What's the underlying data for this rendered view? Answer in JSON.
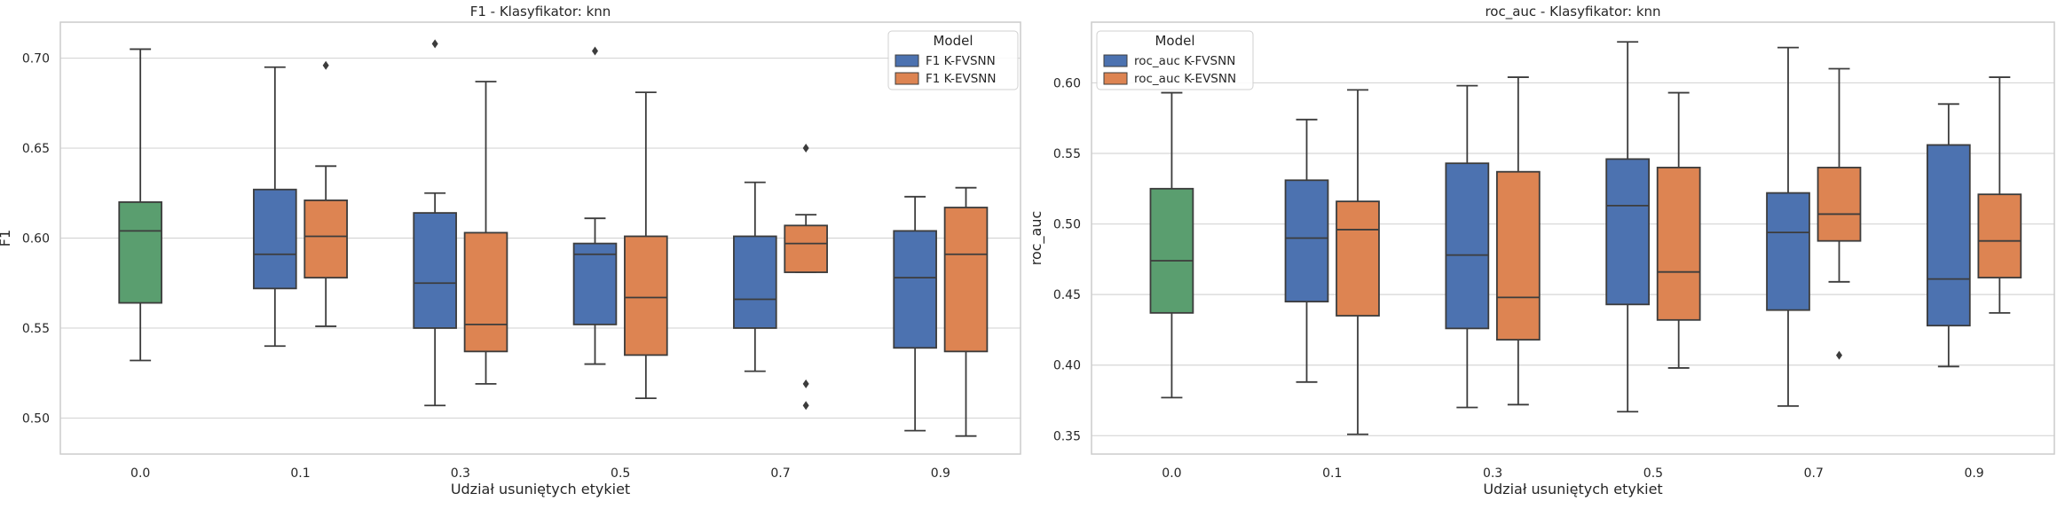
{
  "colors": {
    "baseline": "#5a9e6f",
    "fvsnn": "#4c72b0",
    "evsnn": "#dd8452",
    "grid": "#d6d6d6",
    "frame": "#cccccc",
    "line": "#3c3c3c"
  },
  "chart_data": [
    {
      "type": "box",
      "title": "F1 - Klasyfikator: knn",
      "xlabel": "Udział usuniętych etykiet",
      "ylabel": "F1",
      "categories": [
        "0.0",
        "0.1",
        "0.3",
        "0.5",
        "0.7",
        "0.9"
      ],
      "yticks": [
        "0.50",
        "0.55",
        "0.60",
        "0.65",
        "0.70"
      ],
      "ylim": [
        0.48,
        0.72
      ],
      "grid": "horizontal",
      "legend": {
        "title": "Model",
        "position": "top-right",
        "entries": [
          {
            "label": "F1 K-FVSNN",
            "series": "fvsnn"
          },
          {
            "label": "F1 K-EVSNN",
            "series": "evsnn"
          }
        ]
      },
      "boxes": [
        {
          "category": "0.0",
          "series": "baseline",
          "whisker_low": 0.532,
          "q1": 0.564,
          "median": 0.604,
          "q3": 0.62,
          "whisker_high": 0.705,
          "outliers": []
        },
        {
          "category": "0.1",
          "series": "fvsnn",
          "whisker_low": 0.54,
          "q1": 0.572,
          "median": 0.591,
          "q3": 0.627,
          "whisker_high": 0.695,
          "outliers": []
        },
        {
          "category": "0.1",
          "series": "evsnn",
          "whisker_low": 0.551,
          "q1": 0.578,
          "median": 0.601,
          "q3": 0.621,
          "whisker_high": 0.64,
          "outliers": [
            0.696
          ]
        },
        {
          "category": "0.3",
          "series": "fvsnn",
          "whisker_low": 0.507,
          "q1": 0.55,
          "median": 0.575,
          "q3": 0.614,
          "whisker_high": 0.625,
          "outliers": [
            0.708
          ]
        },
        {
          "category": "0.3",
          "series": "evsnn",
          "whisker_low": 0.519,
          "q1": 0.537,
          "median": 0.552,
          "q3": 0.603,
          "whisker_high": 0.687,
          "outliers": []
        },
        {
          "category": "0.5",
          "series": "fvsnn",
          "whisker_low": 0.53,
          "q1": 0.552,
          "median": 0.591,
          "q3": 0.597,
          "whisker_high": 0.611,
          "outliers": [
            0.704
          ]
        },
        {
          "category": "0.5",
          "series": "evsnn",
          "whisker_low": 0.511,
          "q1": 0.535,
          "median": 0.567,
          "q3": 0.601,
          "whisker_high": 0.681,
          "outliers": []
        },
        {
          "category": "0.7",
          "series": "fvsnn",
          "whisker_low": 0.526,
          "q1": 0.55,
          "median": 0.566,
          "q3": 0.601,
          "whisker_high": 0.631,
          "outliers": []
        },
        {
          "category": "0.7",
          "series": "evsnn",
          "whisker_low": 0.581,
          "q1": 0.581,
          "median": 0.597,
          "q3": 0.607,
          "whisker_high": 0.613,
          "outliers": [
            0.65,
            0.519,
            0.507
          ]
        },
        {
          "category": "0.9",
          "series": "fvsnn",
          "whisker_low": 0.493,
          "q1": 0.539,
          "median": 0.578,
          "q3": 0.604,
          "whisker_high": 0.623,
          "outliers": []
        },
        {
          "category": "0.9",
          "series": "evsnn",
          "whisker_low": 0.49,
          "q1": 0.537,
          "median": 0.591,
          "q3": 0.617,
          "whisker_high": 0.628,
          "outliers": []
        }
      ]
    },
    {
      "type": "box",
      "title": "roc_auc - Klasyfikator: knn",
      "xlabel": "Udział usuniętych etykiet",
      "ylabel": "roc_auc",
      "categories": [
        "0.0",
        "0.1",
        "0.3",
        "0.5",
        "0.7",
        "0.9"
      ],
      "yticks": [
        "0.35",
        "0.40",
        "0.45",
        "0.50",
        "0.55",
        "0.60"
      ],
      "ylim": [
        0.337,
        0.643
      ],
      "grid": "horizontal",
      "legend": {
        "title": "Model",
        "position": "top-left",
        "entries": [
          {
            "label": "roc_auc K-FVSNN",
            "series": "fvsnn"
          },
          {
            "label": "roc_auc K-EVSNN",
            "series": "evsnn"
          }
        ]
      },
      "boxes": [
        {
          "category": "0.0",
          "series": "baseline",
          "whisker_low": 0.377,
          "q1": 0.437,
          "median": 0.474,
          "q3": 0.525,
          "whisker_high": 0.593,
          "outliers": []
        },
        {
          "category": "0.1",
          "series": "fvsnn",
          "whisker_low": 0.388,
          "q1": 0.445,
          "median": 0.49,
          "q3": 0.531,
          "whisker_high": 0.574,
          "outliers": []
        },
        {
          "category": "0.1",
          "series": "evsnn",
          "whisker_low": 0.351,
          "q1": 0.435,
          "median": 0.496,
          "q3": 0.516,
          "whisker_high": 0.595,
          "outliers": []
        },
        {
          "category": "0.3",
          "series": "fvsnn",
          "whisker_low": 0.37,
          "q1": 0.426,
          "median": 0.478,
          "q3": 0.543,
          "whisker_high": 0.598,
          "outliers": []
        },
        {
          "category": "0.3",
          "series": "evsnn",
          "whisker_low": 0.372,
          "q1": 0.418,
          "median": 0.448,
          "q3": 0.537,
          "whisker_high": 0.604,
          "outliers": []
        },
        {
          "category": "0.5",
          "series": "fvsnn",
          "whisker_low": 0.367,
          "q1": 0.443,
          "median": 0.513,
          "q3": 0.546,
          "whisker_high": 0.629,
          "outliers": []
        },
        {
          "category": "0.5",
          "series": "evsnn",
          "whisker_low": 0.398,
          "q1": 0.432,
          "median": 0.466,
          "q3": 0.54,
          "whisker_high": 0.593,
          "outliers": []
        },
        {
          "category": "0.7",
          "series": "fvsnn",
          "whisker_low": 0.371,
          "q1": 0.439,
          "median": 0.494,
          "q3": 0.522,
          "whisker_high": 0.625,
          "outliers": []
        },
        {
          "category": "0.7",
          "series": "evsnn",
          "whisker_low": 0.459,
          "q1": 0.488,
          "median": 0.507,
          "q3": 0.54,
          "whisker_high": 0.61,
          "outliers": [
            0.407
          ]
        },
        {
          "category": "0.9",
          "series": "fvsnn",
          "whisker_low": 0.399,
          "q1": 0.428,
          "median": 0.461,
          "q3": 0.556,
          "whisker_high": 0.585,
          "outliers": []
        },
        {
          "category": "0.9",
          "series": "evsnn",
          "whisker_low": 0.437,
          "q1": 0.462,
          "median": 0.488,
          "q3": 0.521,
          "whisker_high": 0.604,
          "outliers": []
        }
      ]
    }
  ]
}
